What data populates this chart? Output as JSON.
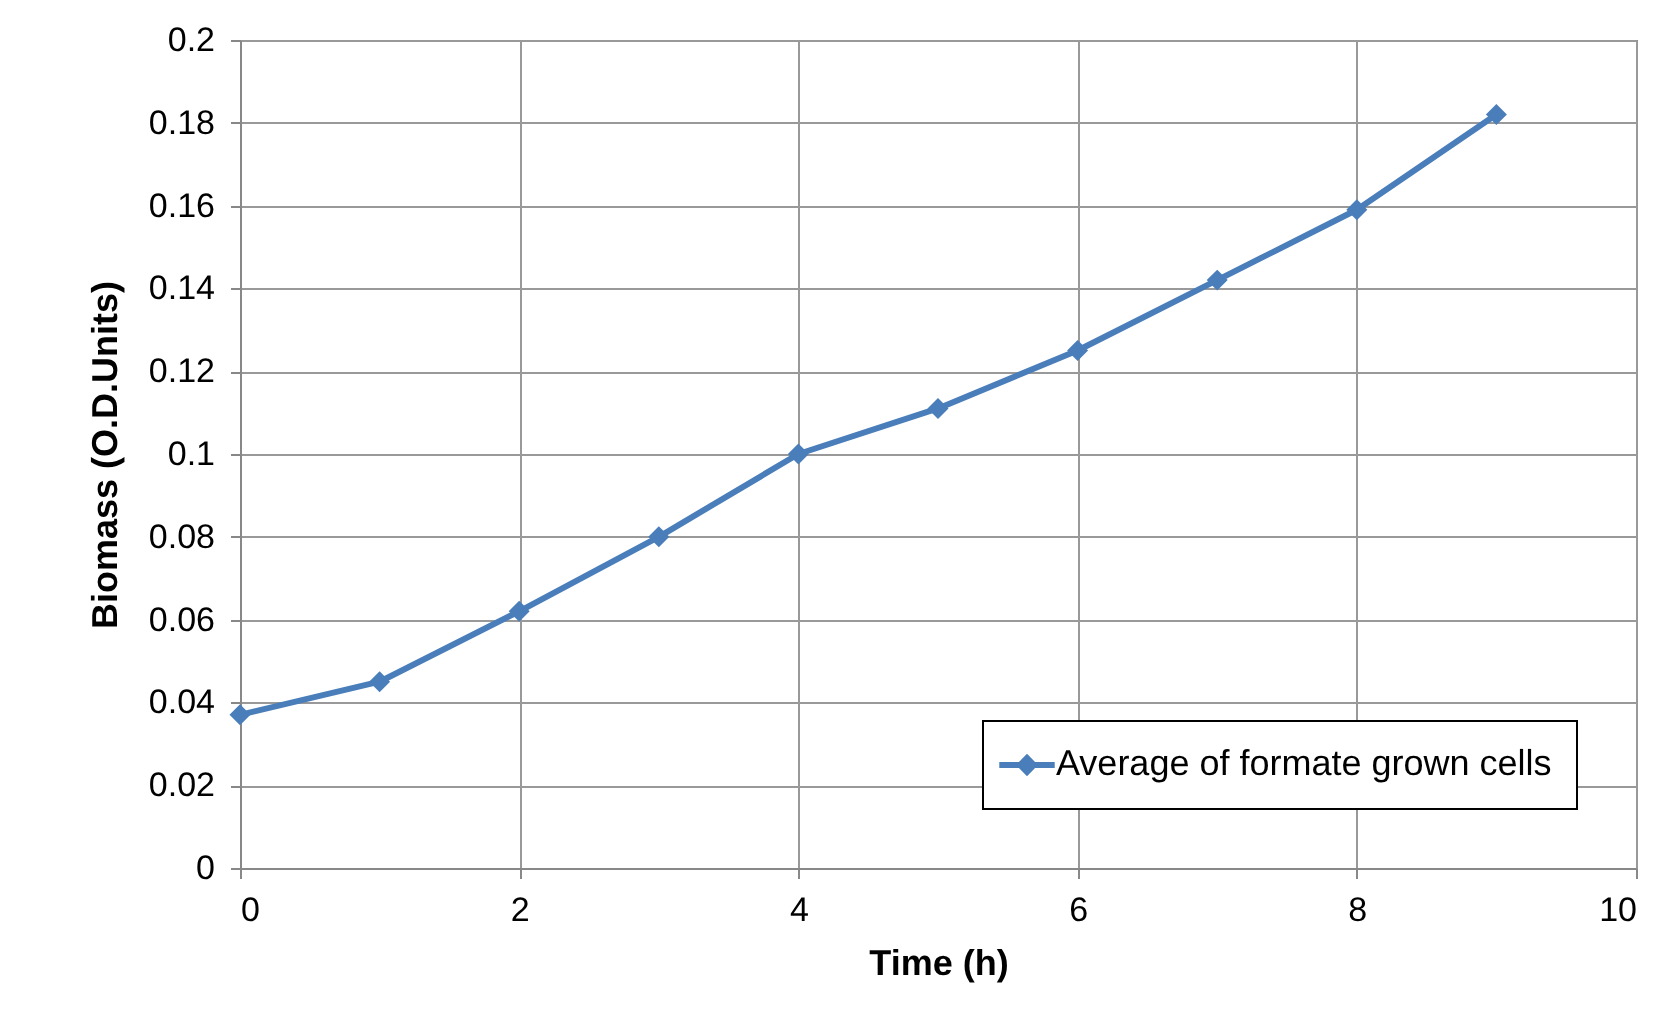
{
  "chart_data": {
    "type": "line",
    "xlabel": "Time (h)",
    "ylabel": "Biomass (O.D.Units)",
    "x": [
      0,
      1,
      2,
      3,
      4,
      5,
      6,
      7,
      8,
      9
    ],
    "series": [
      {
        "name": "Average of formate grown cells",
        "color": "#4a7ebb",
        "values": [
          0.037,
          0.045,
          0.062,
          0.08,
          0.1,
          0.111,
          0.125,
          0.142,
          0.159,
          0.182
        ]
      }
    ],
    "xlim": [
      0,
      10
    ],
    "xticks": [
      0,
      2,
      4,
      6,
      8,
      10
    ],
    "ylim": [
      0,
      0.2
    ],
    "yticks": [
      0,
      0.02,
      0.04,
      0.06,
      0.08,
      0.1,
      0.12,
      0.14,
      0.16,
      0.18,
      0.2
    ],
    "grid": true,
    "legend": "bottom right",
    "marker": "diamond",
    "line_style": "solid"
  }
}
